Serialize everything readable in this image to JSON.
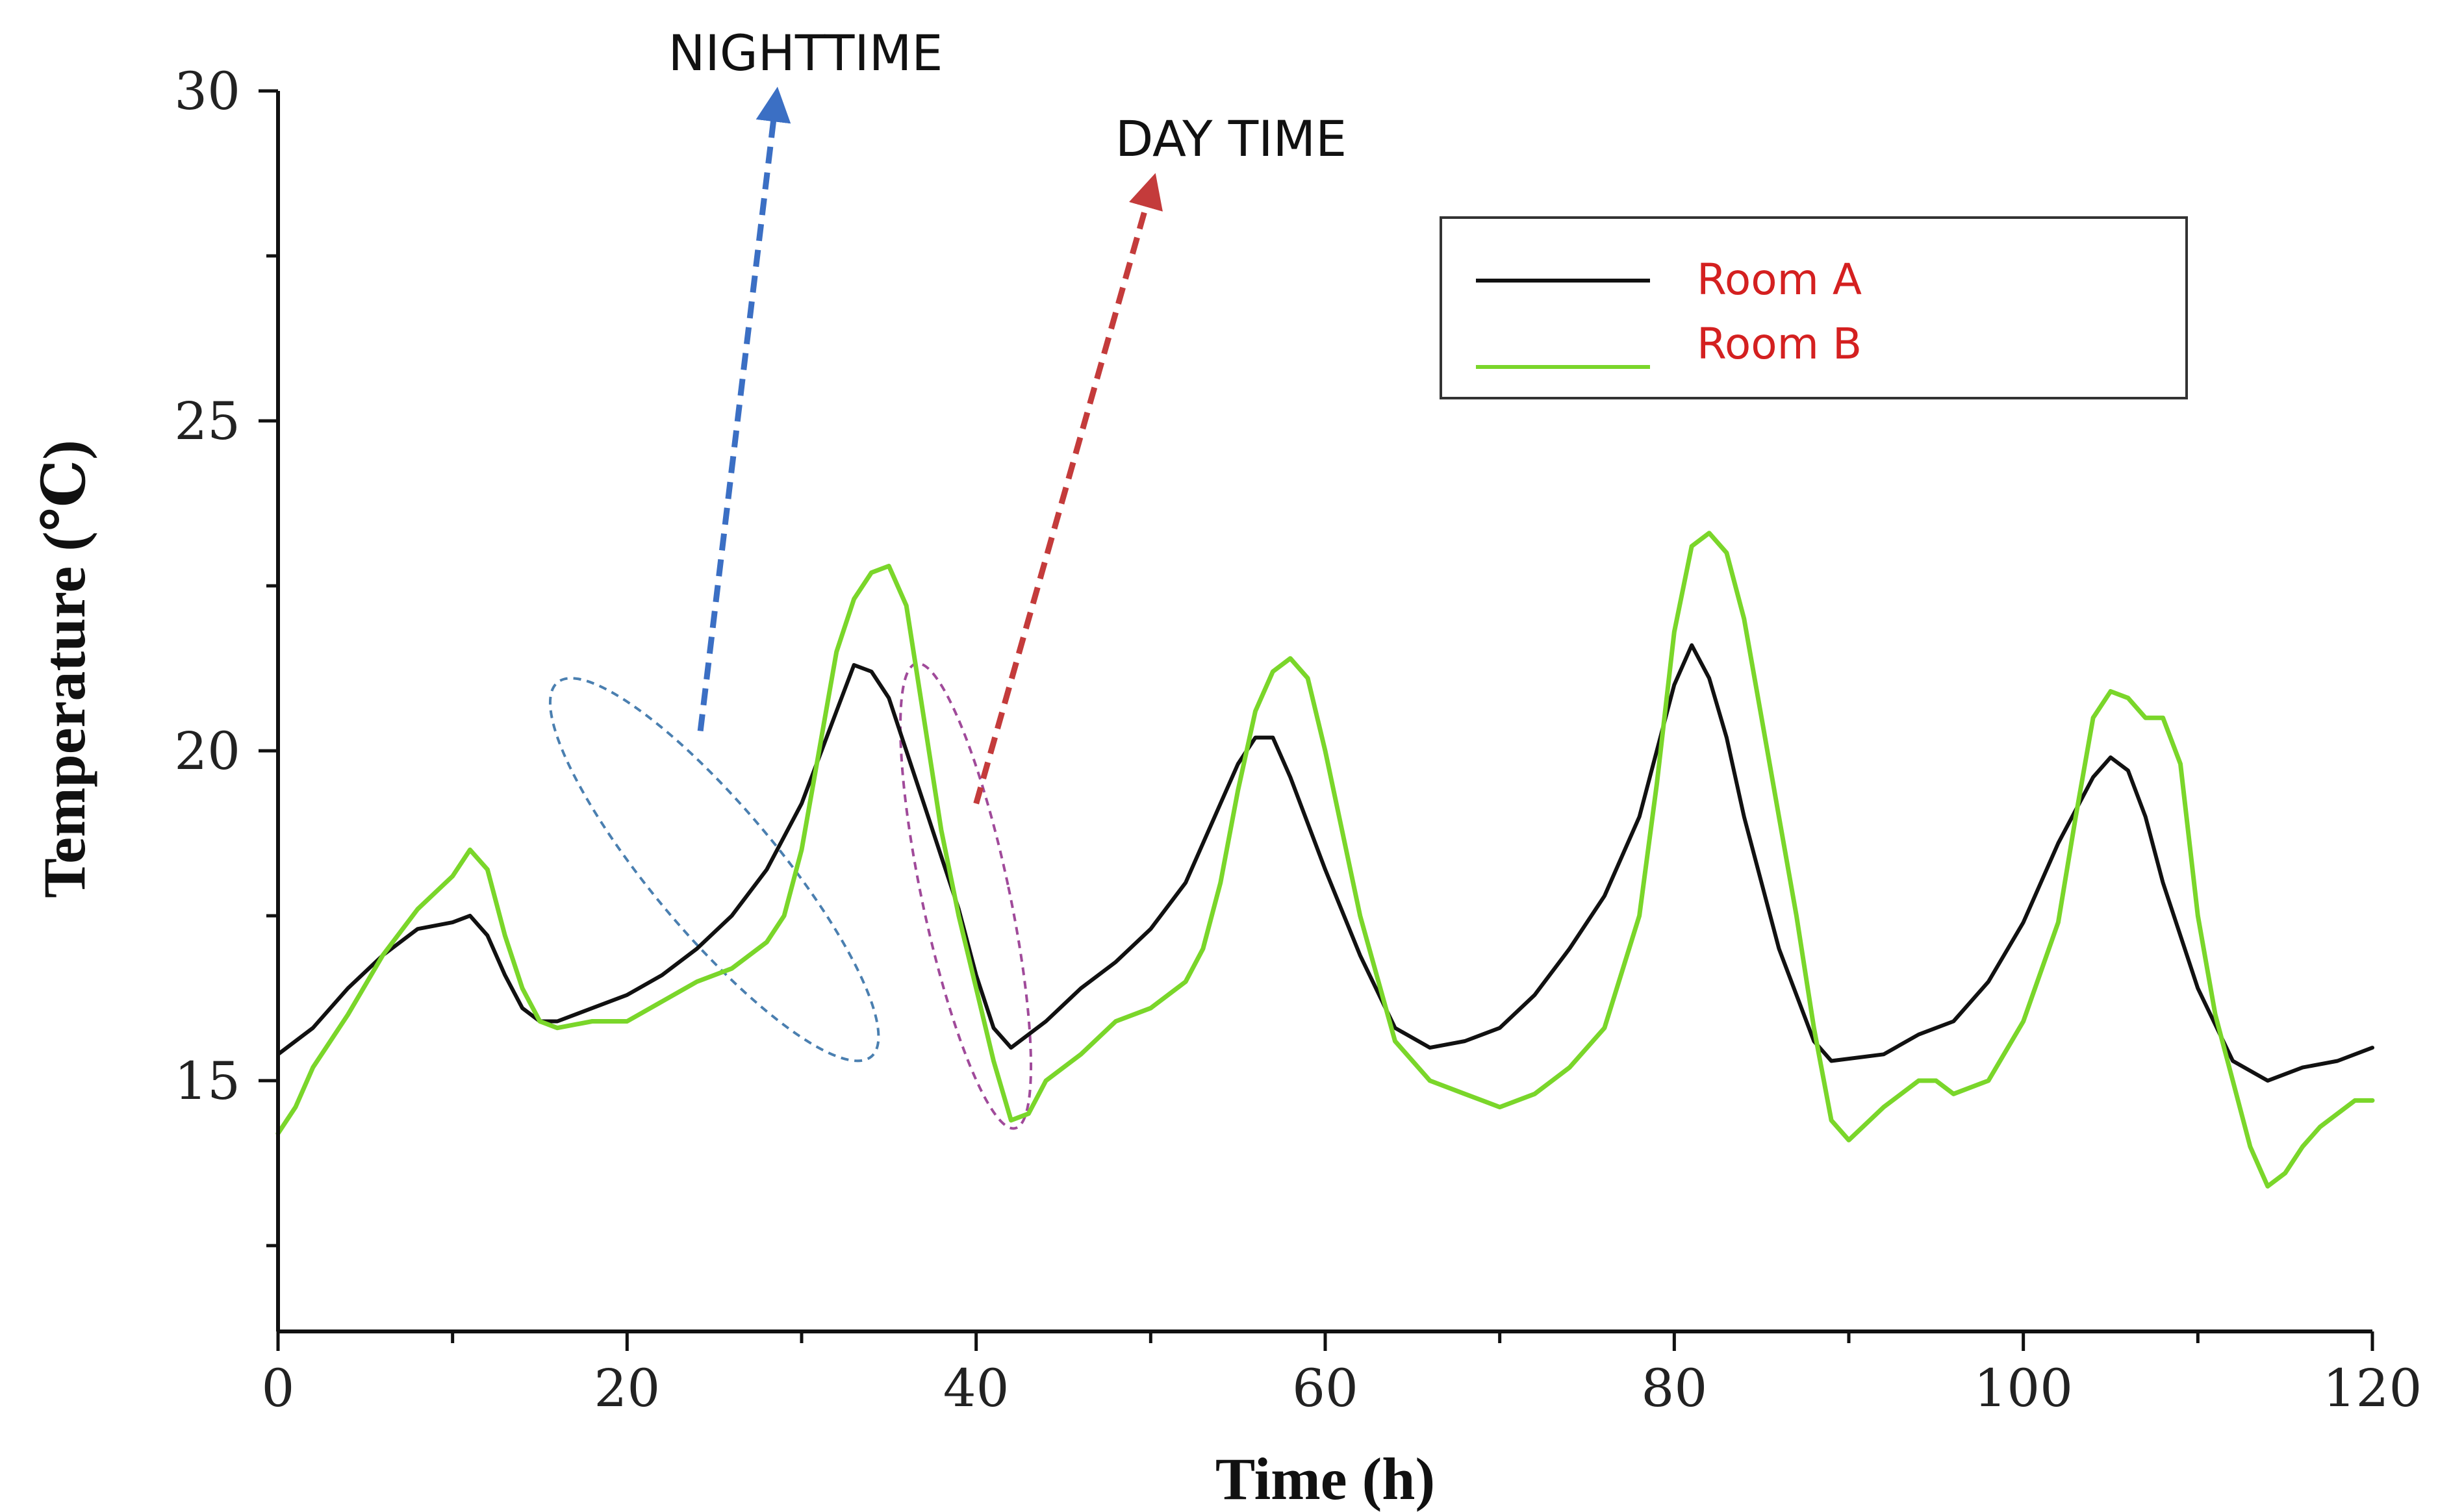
{
  "chart_data": {
    "type": "line",
    "title": "",
    "xlabel": "Time (h)",
    "ylabel": "Temperature (℃)",
    "xlim": [
      0,
      120
    ],
    "ylim": [
      11.2,
      30
    ],
    "xticks": [
      0,
      20,
      40,
      60,
      80,
      100,
      120
    ],
    "yticks": [
      15,
      20,
      25,
      30
    ],
    "grid": false,
    "legend_position": "top-right",
    "legend_text_color": "#d42020",
    "series": [
      {
        "name": "Room A",
        "color": "#111111",
        "points": [
          [
            0,
            15.4
          ],
          [
            2,
            15.8
          ],
          [
            4,
            16.4
          ],
          [
            6,
            16.9
          ],
          [
            8,
            17.3
          ],
          [
            10,
            17.4
          ],
          [
            11,
            17.5
          ],
          [
            12,
            17.2
          ],
          [
            13,
            16.6
          ],
          [
            14,
            16.1
          ],
          [
            15,
            15.9
          ],
          [
            16,
            15.9
          ],
          [
            18,
            16.1
          ],
          [
            20,
            16.3
          ],
          [
            22,
            16.6
          ],
          [
            24,
            17.0
          ],
          [
            26,
            17.5
          ],
          [
            28,
            18.2
          ],
          [
            30,
            19.2
          ],
          [
            32,
            20.6
          ],
          [
            33,
            21.3
          ],
          [
            34,
            21.2
          ],
          [
            35,
            20.8
          ],
          [
            36,
            20.0
          ],
          [
            37,
            19.2
          ],
          [
            38,
            18.4
          ],
          [
            39,
            17.6
          ],
          [
            40,
            16.6
          ],
          [
            41,
            15.8
          ],
          [
            42,
            15.5
          ],
          [
            44,
            15.9
          ],
          [
            46,
            16.4
          ],
          [
            48,
            16.8
          ],
          [
            50,
            17.3
          ],
          [
            52,
            18.0
          ],
          [
            54,
            19.2
          ],
          [
            55,
            19.8
          ],
          [
            56,
            20.2
          ],
          [
            57,
            20.2
          ],
          [
            58,
            19.6
          ],
          [
            60,
            18.2
          ],
          [
            62,
            16.9
          ],
          [
            64,
            15.8
          ],
          [
            66,
            15.5
          ],
          [
            68,
            15.6
          ],
          [
            70,
            15.8
          ],
          [
            72,
            16.3
          ],
          [
            74,
            17.0
          ],
          [
            76,
            17.8
          ],
          [
            78,
            19.0
          ],
          [
            80,
            21.0
          ],
          [
            81,
            21.6
          ],
          [
            82,
            21.1
          ],
          [
            83,
            20.2
          ],
          [
            84,
            19.0
          ],
          [
            86,
            17.0
          ],
          [
            88,
            15.6
          ],
          [
            89,
            15.3
          ],
          [
            92,
            15.4
          ],
          [
            94,
            15.7
          ],
          [
            96,
            15.9
          ],
          [
            98,
            16.5
          ],
          [
            100,
            17.4
          ],
          [
            102,
            18.6
          ],
          [
            104,
            19.6
          ],
          [
            105,
            19.9
          ],
          [
            106,
            19.7
          ],
          [
            107,
            19.0
          ],
          [
            108,
            18.0
          ],
          [
            110,
            16.4
          ],
          [
            112,
            15.3
          ],
          [
            114,
            15.0
          ],
          [
            116,
            15.2
          ],
          [
            118,
            15.3
          ],
          [
            120,
            15.5
          ]
        ]
      },
      {
        "name": "Room B",
        "color": "#7ad62a",
        "points": [
          [
            0,
            14.2
          ],
          [
            1,
            14.6
          ],
          [
            2,
            15.2
          ],
          [
            4,
            16.0
          ],
          [
            6,
            16.9
          ],
          [
            8,
            17.6
          ],
          [
            10,
            18.1
          ],
          [
            11,
            18.5
          ],
          [
            12,
            18.2
          ],
          [
            13,
            17.2
          ],
          [
            14,
            16.4
          ],
          [
            15,
            15.9
          ],
          [
            16,
            15.8
          ],
          [
            18,
            15.9
          ],
          [
            20,
            15.9
          ],
          [
            22,
            16.2
          ],
          [
            24,
            16.5
          ],
          [
            26,
            16.7
          ],
          [
            28,
            17.1
          ],
          [
            29,
            17.5
          ],
          [
            30,
            18.5
          ],
          [
            31,
            20.0
          ],
          [
            32,
            21.5
          ],
          [
            33,
            22.3
          ],
          [
            34,
            22.7
          ],
          [
            35,
            22.8
          ],
          [
            36,
            22.2
          ],
          [
            37,
            20.5
          ],
          [
            38,
            18.8
          ],
          [
            39,
            17.5
          ],
          [
            40,
            16.4
          ],
          [
            41,
            15.3
          ],
          [
            42,
            14.4
          ],
          [
            43,
            14.5
          ],
          [
            44,
            15.0
          ],
          [
            46,
            15.4
          ],
          [
            48,
            15.9
          ],
          [
            50,
            16.1
          ],
          [
            52,
            16.5
          ],
          [
            53,
            17.0
          ],
          [
            54,
            18.0
          ],
          [
            55,
            19.4
          ],
          [
            56,
            20.6
          ],
          [
            57,
            21.2
          ],
          [
            58,
            21.4
          ],
          [
            59,
            21.1
          ],
          [
            60,
            20.0
          ],
          [
            62,
            17.5
          ],
          [
            64,
            15.6
          ],
          [
            66,
            15.0
          ],
          [
            68,
            14.8
          ],
          [
            70,
            14.6
          ],
          [
            72,
            14.8
          ],
          [
            74,
            15.2
          ],
          [
            76,
            15.8
          ],
          [
            78,
            17.5
          ],
          [
            79,
            19.5
          ],
          [
            80,
            21.8
          ],
          [
            81,
            23.1
          ],
          [
            82,
            23.3
          ],
          [
            83,
            23.0
          ],
          [
            84,
            22.0
          ],
          [
            85,
            20.5
          ],
          [
            86,
            19.0
          ],
          [
            87,
            17.5
          ],
          [
            88,
            15.8
          ],
          [
            89,
            14.4
          ],
          [
            90,
            14.1
          ],
          [
            92,
            14.6
          ],
          [
            94,
            15.0
          ],
          [
            95,
            15.0
          ],
          [
            96,
            14.8
          ],
          [
            98,
            15.0
          ],
          [
            100,
            15.9
          ],
          [
            102,
            17.4
          ],
          [
            103,
            19.0
          ],
          [
            104,
            20.5
          ],
          [
            105,
            20.9
          ],
          [
            106,
            20.8
          ],
          [
            107,
            20.5
          ],
          [
            108,
            20.5
          ],
          [
            109,
            19.8
          ],
          [
            110,
            17.5
          ],
          [
            111,
            16.0
          ],
          [
            112,
            15.0
          ],
          [
            113,
            14.0
          ],
          [
            114,
            13.4
          ],
          [
            115,
            13.6
          ],
          [
            116,
            14.0
          ],
          [
            117,
            14.3
          ],
          [
            118,
            14.5
          ],
          [
            119,
            14.7
          ],
          [
            120,
            14.7
          ]
        ]
      }
    ],
    "annotations": [
      {
        "label": "NIGHTTIME",
        "color": "#3b6fc4",
        "arrow_from": [
          24.2,
          20.3
        ],
        "arrow_to": [
          28.5,
          29.8
        ]
      },
      {
        "label": "DAY TIME",
        "color": "#c43b3b",
        "arrow_from": [
          40,
          19.2
        ],
        "arrow_to": [
          50,
          28.5
        ]
      }
    ],
    "highlight_regions": [
      {
        "name": "nighttime-ellipse",
        "color": "#4a7fb0",
        "center": [
          25,
          18.2
        ],
        "semi_x": 3.6,
        "semi_y": 3.7,
        "rotation_deg": -40
      },
      {
        "name": "daytime-ellipse",
        "color": "#a04a9a",
        "center": [
          39.4,
          17.8
        ],
        "semi_x": 2.5,
        "semi_y": 3.6,
        "rotation_deg": -12
      }
    ]
  }
}
